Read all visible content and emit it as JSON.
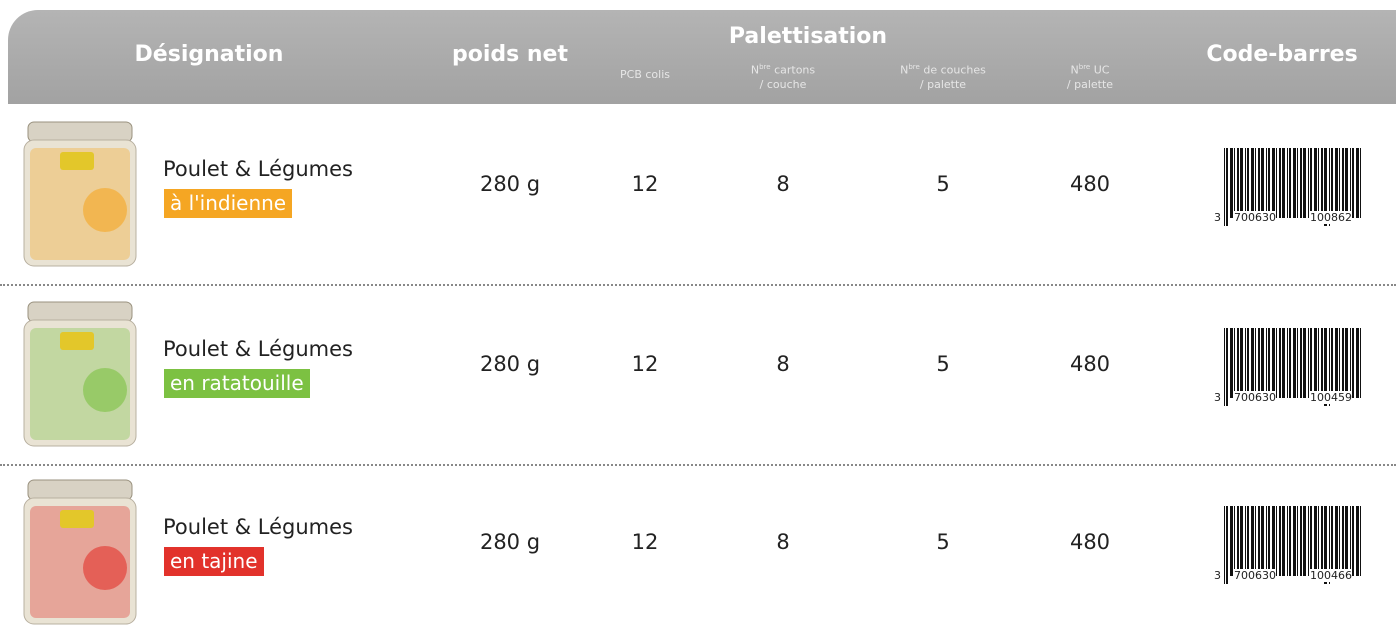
{
  "header": {
    "designation": "Désignation",
    "poids_net": "poids net",
    "pcb": "PCB colis",
    "palettisation": "Palettisation",
    "cartons": {
      "n": "N",
      "sup": "bre",
      "line1": "cartons",
      "line2": "/ couche"
    },
    "couches": {
      "n": "N",
      "sup": "bre",
      "line1": "de couches",
      "line2": "/ palette"
    },
    "uc": {
      "n": "N",
      "sup": "bre",
      "line1": "UC",
      "line2": "/ palette"
    },
    "code_barres": "Code-barres"
  },
  "rows": [
    {
      "name": "Poulet & Légumes",
      "variant": "à l'indienne",
      "variant_color": "#f5a623",
      "poids": "280 g",
      "pcb": 12,
      "cartons": 8,
      "couches": 5,
      "uc": 480,
      "barcode": [
        "3",
        "700630",
        "100862"
      ]
    },
    {
      "name": "Poulet & Légumes",
      "variant": "en ratatouille",
      "variant_color": "#7cc142",
      "poids": "280 g",
      "pcb": 12,
      "cartons": 8,
      "couches": 5,
      "uc": 480,
      "barcode": [
        "3",
        "700630",
        "100459"
      ]
    },
    {
      "name": "Poulet & Légumes",
      "variant": "en tajine",
      "variant_color": "#e2322b",
      "poids": "280 g",
      "pcb": 12,
      "cartons": 8,
      "couches": 5,
      "uc": 480,
      "barcode": [
        "3",
        "700630",
        "100466"
      ]
    }
  ]
}
